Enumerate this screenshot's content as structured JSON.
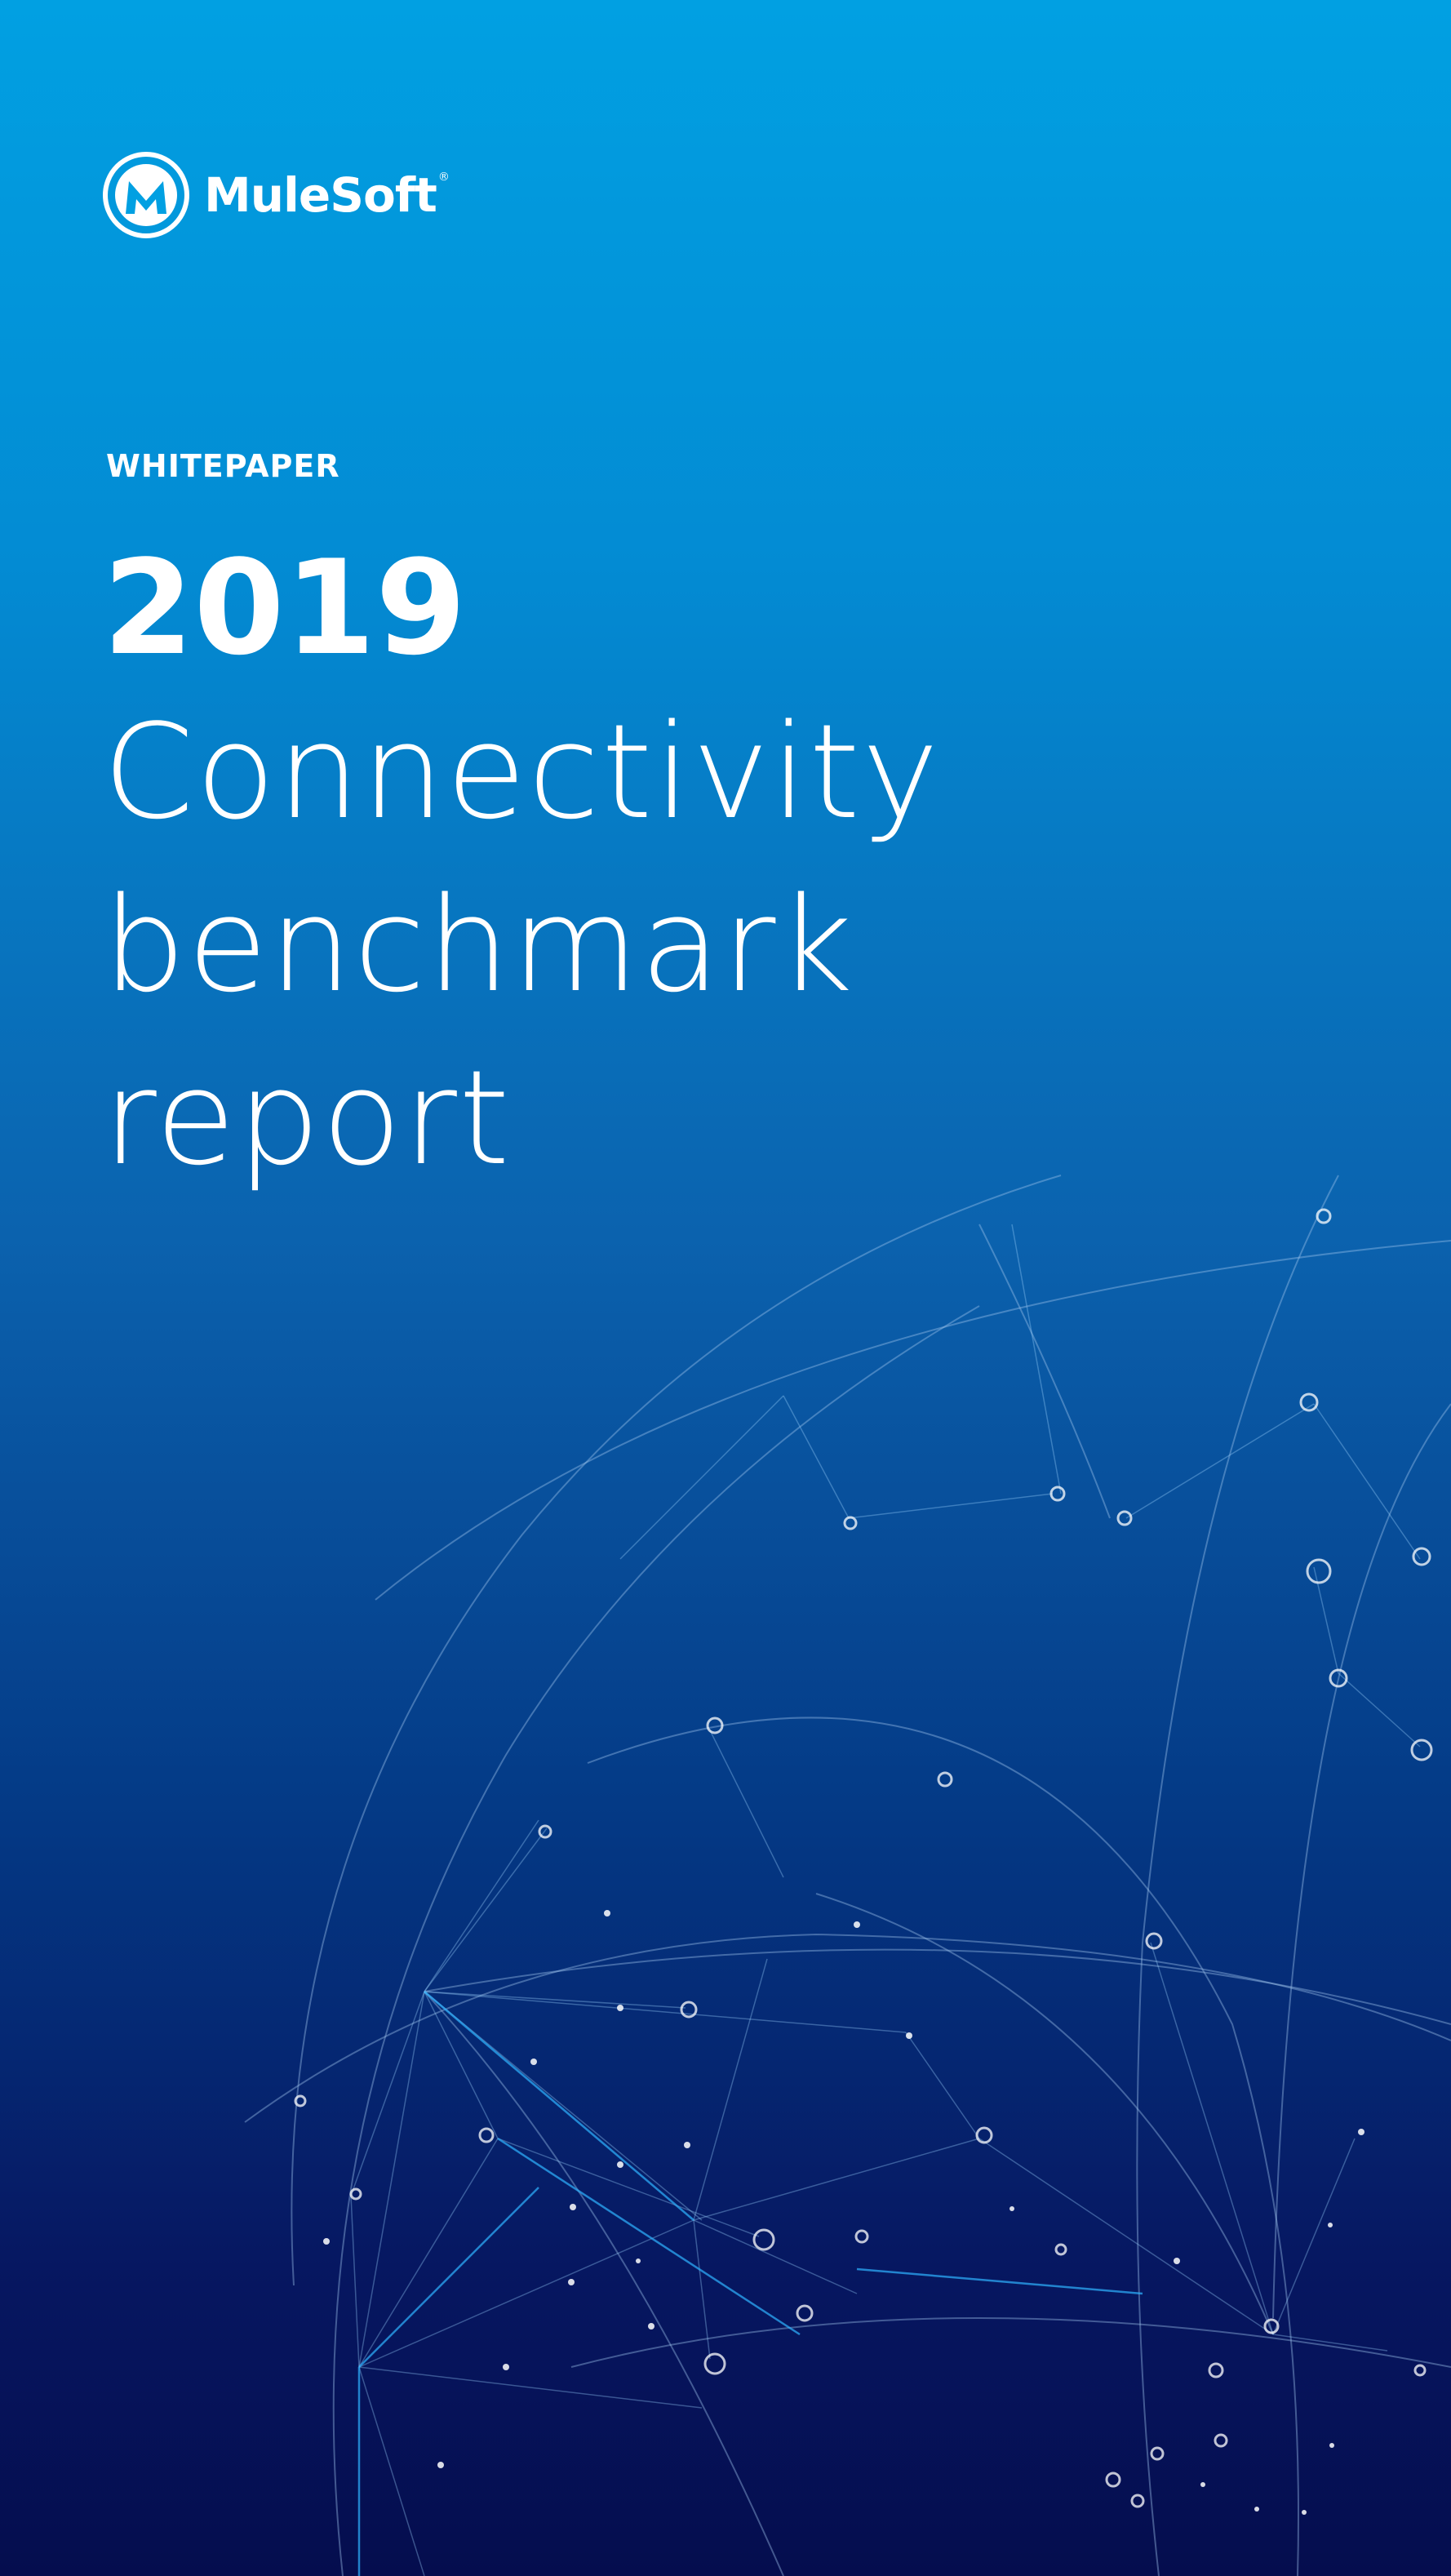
{
  "brand": {
    "name": "MuleSoft",
    "trademark": "®",
    "logo_icon": "mulesoft-logo-icon"
  },
  "eyebrow": "WHITEPAPER",
  "title": {
    "year": "2019",
    "line1": "Connectivity",
    "line2": "benchmark",
    "line3": "report"
  },
  "colors": {
    "gradient_top": "#01a0e2",
    "gradient_bottom": "#050d4e",
    "text": "#ffffff"
  },
  "background_icon": "network-globe-illustration"
}
